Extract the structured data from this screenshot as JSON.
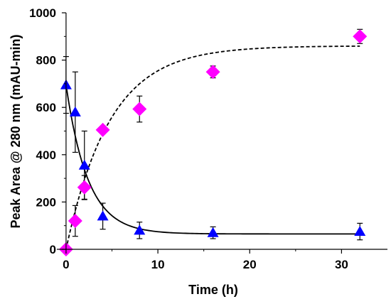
{
  "chart_data": {
    "type": "scatter",
    "title": "",
    "xlabel": "Time (h)",
    "ylabel": "Peak Area @ 280 nm (mAU-min)",
    "xlim": [
      -1,
      35
    ],
    "ylim": [
      0,
      1000
    ],
    "x_ticks": [
      "0",
      "10",
      "20",
      "30"
    ],
    "y_ticks": [
      "0",
      "200",
      "400",
      "600",
      "800",
      "1000"
    ],
    "grid": false,
    "legend": "none",
    "series": [
      {
        "marker": "triangle",
        "color": "#0000ff",
        "x": [
          0,
          1,
          2,
          4,
          8,
          16,
          32
        ],
        "y": [
          695,
          580,
          355,
          140,
          80,
          70,
          75
        ],
        "err": [
          120,
          170,
          145,
          55,
          35,
          25,
          35
        ]
      },
      {
        "marker": "diamond",
        "color": "#ff00ff",
        "x": [
          0,
          1,
          2,
          4,
          8,
          16,
          32
        ],
        "y": [
          0,
          120,
          262,
          505,
          593,
          750,
          900
        ],
        "err": [
          0,
          65,
          50,
          0,
          55,
          25,
          30
        ]
      }
    ],
    "fit_lines": [
      {
        "style": "solid",
        "color": "#000000",
        "follows": "triangle"
      },
      {
        "style": "dashed",
        "color": "#000000",
        "follows": "diamond"
      }
    ]
  }
}
